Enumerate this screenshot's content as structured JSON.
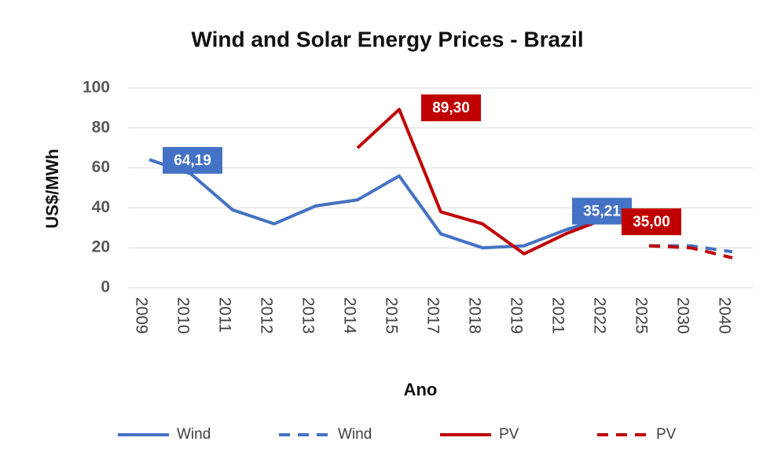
{
  "chart_data": {
    "type": "line",
    "title": "Wind and Solar Energy Prices - Brazil",
    "x_label": "Ano",
    "y_label": "US$/MWh",
    "categories": [
      "2009",
      "2010",
      "2011",
      "2012",
      "2013",
      "2014",
      "2015",
      "2017",
      "2018",
      "2019",
      "2021",
      "2022",
      "2025",
      "2030",
      "2040"
    ],
    "series": [
      {
        "name": "Wind",
        "color": "#4472c4",
        "dashed": false,
        "values": [
          64.19,
          57,
          39,
          32,
          41,
          44,
          56,
          27,
          20,
          21,
          29,
          35.21,
          null,
          null,
          null
        ],
        "value_labels": [
          "64,19",
          null,
          null,
          null,
          null,
          null,
          null,
          null,
          null,
          null,
          null,
          "35,21",
          null,
          null,
          null
        ]
      },
      {
        "name": "Wind",
        "color": "#4472c4",
        "dashed": true,
        "values": [
          null,
          null,
          null,
          null,
          null,
          null,
          null,
          null,
          null,
          null,
          null,
          null,
          21,
          21,
          18
        ]
      },
      {
        "name": "PV",
        "color": "#c00000",
        "dashed": false,
        "values": [
          null,
          null,
          null,
          null,
          null,
          70,
          89.3,
          38,
          32,
          17,
          27,
          35,
          null,
          null,
          null
        ],
        "value_labels": [
          null,
          null,
          null,
          null,
          null,
          null,
          "89,30",
          null,
          null,
          null,
          null,
          "35,00",
          null,
          null,
          null
        ]
      },
      {
        "name": "PV",
        "color": "#c00000",
        "dashed": true,
        "values": [
          null,
          null,
          null,
          null,
          null,
          null,
          null,
          null,
          null,
          null,
          null,
          null,
          21,
          20,
          15
        ]
      }
    ],
    "ylim": [
      0,
      100
    ],
    "yticks": [
      0,
      20,
      40,
      60,
      80,
      100
    ],
    "grid": true,
    "legend": "bottom"
  }
}
